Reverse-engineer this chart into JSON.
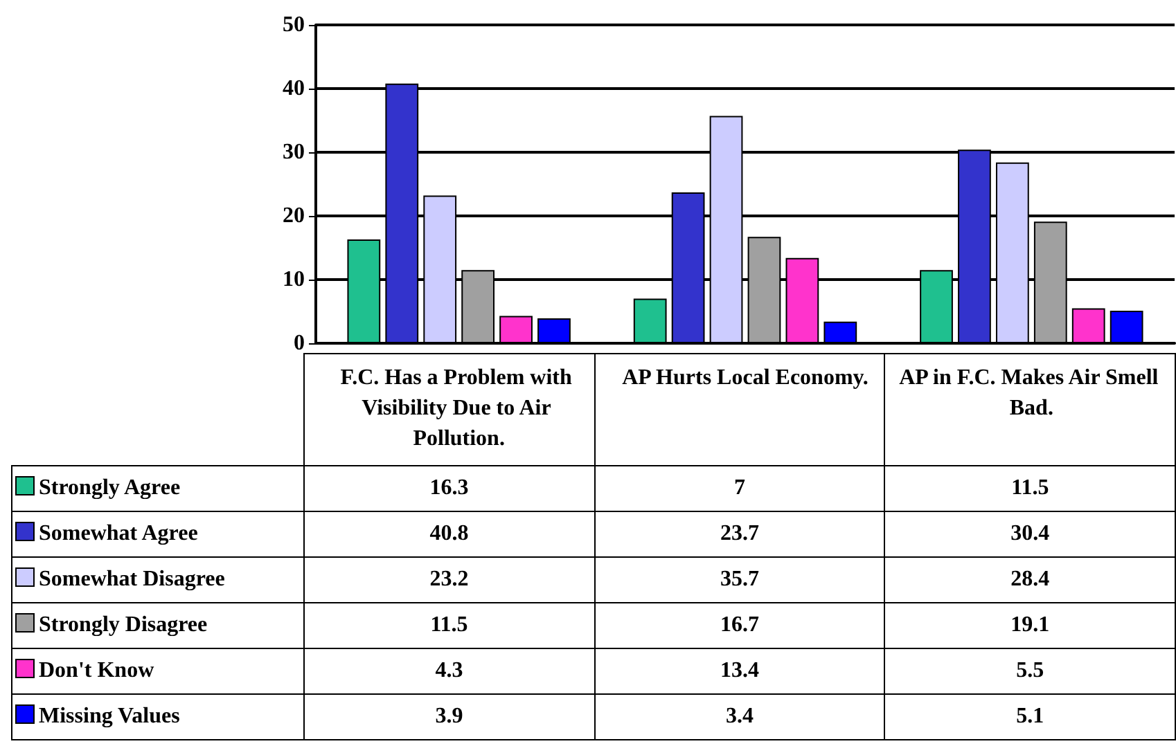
{
  "chart_data": {
    "type": "bar",
    "categories": [
      "F.C. Has a Problem with Visibility Due to Air Pollution.",
      "AP Hurts Local Economy.",
      "AP in F.C. Makes Air Smell Bad."
    ],
    "series": [
      {
        "name": "Strongly Agree",
        "color": "#1fc08f",
        "values": [
          16.3,
          7,
          11.5
        ]
      },
      {
        "name": "Somewhat Agree",
        "color": "#3333cc",
        "values": [
          40.8,
          23.7,
          30.4
        ]
      },
      {
        "name": "Somewhat Disagree",
        "color": "#ccccff",
        "values": [
          23.2,
          35.7,
          28.4
        ]
      },
      {
        "name": "Strongly Disagree",
        "color": "#a0a0a0",
        "values": [
          11.5,
          16.7,
          19.1
        ]
      },
      {
        "name": "Don't Know",
        "color": "#ff33cc",
        "values": [
          4.3,
          13.4,
          5.5
        ]
      },
      {
        "name": "Missing Values",
        "color": "#0000ff",
        "values": [
          3.9,
          3.4,
          5.1
        ]
      }
    ],
    "ylim": [
      0,
      50
    ],
    "yticks": [
      0,
      10,
      20,
      30,
      40,
      50
    ],
    "grid": "y",
    "legend": "bottom left",
    "data_labels": true
  }
}
